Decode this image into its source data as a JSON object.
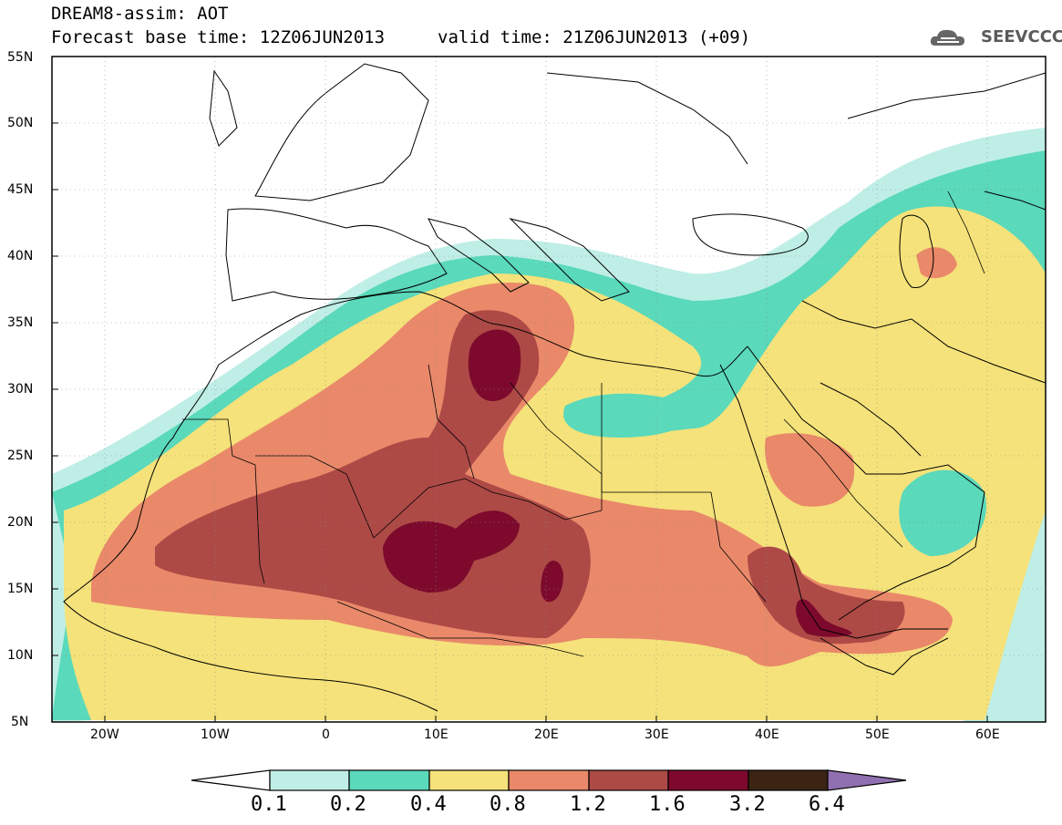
{
  "title": {
    "line1": "DREAM8-assim: AOT",
    "line2_left": "Forecast base time: 12Z06JUN2013",
    "line2_right": "valid time: 21Z06JUN2013 (+09)"
  },
  "logo": {
    "text": "SEEVCCC",
    "icon": "cloud-icon"
  },
  "axes": {
    "lat_labels": [
      "55N",
      "50N",
      "45N",
      "40N",
      "35N",
      "30N",
      "25N",
      "20N",
      "15N",
      "10N",
      "5N"
    ],
    "lon_labels": [
      "20W",
      "10W",
      "0",
      "10E",
      "20E",
      "30E",
      "40E",
      "50E",
      "60E"
    ],
    "lon_range": [
      -25,
      65
    ],
    "lat_range": [
      5,
      55
    ],
    "grid": "dotted"
  },
  "colorbar": {
    "labels": [
      "0.1",
      "0.2",
      "0.4",
      "0.8",
      "1.2",
      "1.6",
      "3.2",
      "6.4"
    ],
    "colors": [
      "#ffffff",
      "#bfeee6",
      "#5ad9bb",
      "#f5e27a",
      "#e9896a",
      "#ad4a46",
      "#7d0a2c",
      "#3c2414",
      "#9070b0"
    ]
  }
}
